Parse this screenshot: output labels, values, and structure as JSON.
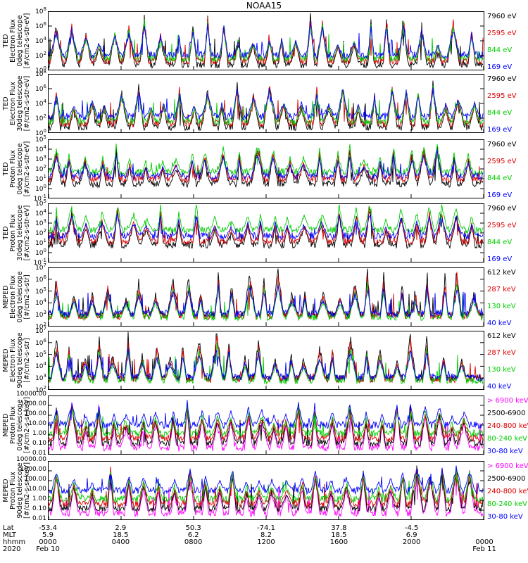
{
  "title": "NOAA15",
  "chart_data": {
    "type": "line",
    "panels": [
      {
        "ylabel": "TED\nElectron Flux\n0deg telescope\n[#/cm2-s-str-eV]",
        "scale": "log",
        "ylim": [
          1,
          100000000
        ],
        "yticks": [
          "10^0",
          "10^2",
          "10^4",
          "10^6",
          "10^8"
        ],
        "series": [
          {
            "name": "7960 eV",
            "color": "#000000"
          },
          {
            "name": "2595 eV",
            "color": "#dd0000"
          },
          {
            "name": "844 eV",
            "color": "#00cc00"
          },
          {
            "name": "169 eV",
            "color": "#0000ff"
          }
        ],
        "baselines": [
          0.1,
          0.16,
          0.2,
          0.26
        ],
        "peak": 0.92
      },
      {
        "ylabel": "TED\nElectron Flux\n30deg telescope\n[#/cm2-s-str-eV]",
        "scale": "log",
        "ylim": [
          1,
          100000000
        ],
        "yticks": [
          "10^0",
          "10^2",
          "10^4",
          "10^6",
          "10^8"
        ],
        "series": [
          {
            "name": "7960 eV",
            "color": "#000000"
          },
          {
            "name": "2595 eV",
            "color": "#dd0000"
          },
          {
            "name": "844 eV",
            "color": "#00cc00"
          },
          {
            "name": "169 eV",
            "color": "#0000ff"
          }
        ],
        "baselines": [
          0.1,
          0.16,
          0.2,
          0.28
        ],
        "peak": 0.85
      },
      {
        "ylabel": "TED\nProton Flux\n0deg telescope\n[#/cm2-s-str-eV]",
        "scale": "log",
        "ylim": [
          0.1,
          100000
        ],
        "yticks": [
          "10^-1",
          "10^0",
          "10^1",
          "10^2",
          "10^3",
          "10^4",
          "10^5"
        ],
        "series": [
          {
            "name": "7960 eV",
            "color": "#000000"
          },
          {
            "name": "2595 eV",
            "color": "#dd0000"
          },
          {
            "name": "844 eV",
            "color": "#00cc00"
          },
          {
            "name": "169 eV",
            "color": "#0000ff"
          }
        ],
        "baselines": [
          0.25,
          0.33,
          0.45,
          0.38
        ],
        "peak": 0.75
      },
      {
        "ylabel": "TED\nProton Flux\n30deg telescope\n[#/cm2-s-str-eV]",
        "scale": "log",
        "ylim": [
          0.1,
          100000
        ],
        "yticks": [
          "10^-1",
          "10^0",
          "10^1",
          "10^2",
          "10^3",
          "10^4",
          "10^5"
        ],
        "series": [
          {
            "name": "7960 eV",
            "color": "#000000"
          },
          {
            "name": "2595 eV",
            "color": "#dd0000"
          },
          {
            "name": "844 eV",
            "color": "#00cc00"
          },
          {
            "name": "169 eV",
            "color": "#0000ff"
          }
        ],
        "baselines": [
          0.3,
          0.36,
          0.55,
          0.45
        ],
        "peak": 0.7
      },
      {
        "ylabel": "MEPED\nElectron Flux\n0deg telescope\n[#/cm2-s-str]",
        "scale": "log",
        "ylim": [
          100,
          10000000
        ],
        "yticks": [
          "10^2",
          "10^3",
          "10^4",
          "10^5",
          "10^6",
          "10^7"
        ],
        "series": [
          {
            "name": "612 keV",
            "color": "#000000"
          },
          {
            "name": "287 keV",
            "color": "#dd0000"
          },
          {
            "name": "130 keV",
            "color": "#00cc00"
          },
          {
            "name": "40 keV",
            "color": "#0000ff"
          }
        ],
        "baselines": [
          0.2,
          0.18,
          0.16,
          0.22
        ],
        "peak": 0.85
      },
      {
        "ylabel": "MEPED\nElectron Flux\n90deg telescope\n[#/cm2-s-str]",
        "scale": "log",
        "ylim": [
          100,
          10000000
        ],
        "yticks": [
          "10^2",
          "10^3",
          "10^4",
          "10^5",
          "10^6",
          "10^7"
        ],
        "series": [
          {
            "name": "612 keV",
            "color": "#000000"
          },
          {
            "name": "287 keV",
            "color": "#dd0000"
          },
          {
            "name": "130 keV",
            "color": "#00cc00"
          },
          {
            "name": "40 keV",
            "color": "#0000ff"
          }
        ],
        "baselines": [
          0.2,
          0.18,
          0.16,
          0.22
        ],
        "peak": 0.9
      },
      {
        "ylabel": "MEPED\nProton Flux\n0deg telescope\n[#/cm2-s-sr-keV]",
        "scale": "log",
        "ylim": [
          0.01,
          10000
        ],
        "yticks": [
          "0.01",
          "0.10",
          "1.00",
          "10.00",
          "100.00",
          "1000.00",
          "10000.00"
        ],
        "series": [
          {
            "name": "> 6900 keV",
            "color": "#ff00ff"
          },
          {
            "name": "2500-6900 keV",
            "color": "#000000"
          },
          {
            "name": "240-800 keV",
            "color": "#dd0000"
          },
          {
            "name": "80-240 keV",
            "color": "#00cc00"
          },
          {
            "name": "30-80 keV",
            "color": "#0000ff"
          }
        ],
        "baselines": [
          0.12,
          0.2,
          0.28,
          0.36,
          0.5
        ],
        "peak": 0.85
      },
      {
        "ylabel": "MEPED\nProton Flux\n90deg telescope\n[#/cm2-s-sr-keV]",
        "scale": "log",
        "ylim": [
          0.01,
          10000
        ],
        "yticks": [
          "0.01",
          "0.10",
          "1.00",
          "10.00",
          "100.00",
          "1000.00",
          "10000.00"
        ],
        "series": [
          {
            "name": "> 6900 keV",
            "color": "#ff00ff"
          },
          {
            "name": "2500-6900 keV",
            "color": "#000000"
          },
          {
            "name": "240-800 keV",
            "color": "#dd0000"
          },
          {
            "name": "80-240 keV",
            "color": "#00cc00"
          },
          {
            "name": "30-80 keV",
            "color": "#0000ff"
          }
        ],
        "baselines": [
          0.12,
          0.2,
          0.28,
          0.36,
          0.5
        ],
        "peak": 0.9
      }
    ],
    "x_axis": {
      "row_labels": [
        "Lat",
        "MLT",
        "hhmm",
        "2020"
      ],
      "ticks": [
        {
          "lat": "-53.4",
          "mlt": "5.9",
          "hhmm": "0000",
          "date": "Feb 10"
        },
        {
          "lat": "2.9",
          "mlt": "18.5",
          "hhmm": "0400",
          "date": ""
        },
        {
          "lat": "50.3",
          "mlt": "6.2",
          "hhmm": "0800",
          "date": ""
        },
        {
          "lat": "-74.1",
          "mlt": "8.2",
          "hhmm": "1200",
          "date": ""
        },
        {
          "lat": "37.8",
          "mlt": "18.5",
          "hhmm": "1600",
          "date": ""
        },
        {
          "lat": "-4.5",
          "mlt": "6.9",
          "hhmm": "2000",
          "date": ""
        },
        {
          "lat": "",
          "mlt": "",
          "hhmm": "0000",
          "date": "Feb 11"
        }
      ]
    }
  }
}
